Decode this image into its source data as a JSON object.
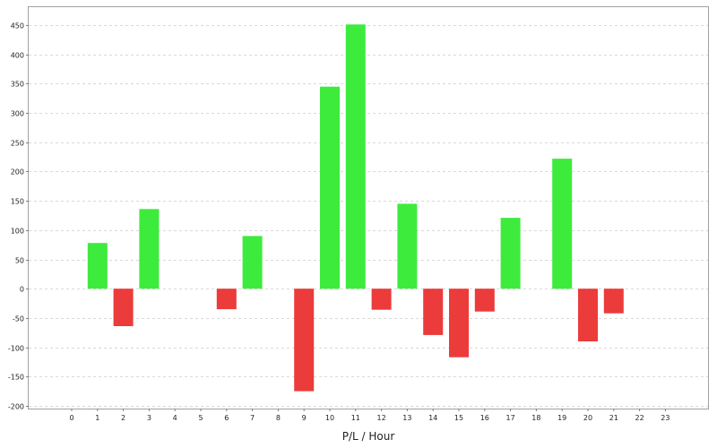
{
  "chart_data": {
    "type": "bar",
    "title": "",
    "xlabel": "P/L / Hour",
    "ylabel": "",
    "categories": [
      "0",
      "1",
      "2",
      "3",
      "4",
      "5",
      "6",
      "7",
      "8",
      "9",
      "10",
      "11",
      "12",
      "13",
      "14",
      "15",
      "16",
      "17",
      "18",
      "19",
      "20",
      "21",
      "22",
      "23"
    ],
    "values": [
      0,
      78,
      -64,
      136,
      0,
      0,
      -35,
      90,
      0,
      -175,
      345,
      451,
      -36,
      145,
      -79,
      -117,
      -39,
      121,
      0,
      222,
      -90,
      -42,
      0,
      0
    ],
    "ylim": [
      -200,
      450
    ],
    "yticks": [
      -200,
      -150,
      -100,
      -50,
      0,
      50,
      100,
      150,
      200,
      250,
      300,
      350,
      400,
      450
    ],
    "grid": true,
    "colors": {
      "positive": "#3deb3d",
      "negative": "#eb3b3b",
      "grid": "#d9d9d9",
      "frame": "#a0a0a0"
    }
  }
}
